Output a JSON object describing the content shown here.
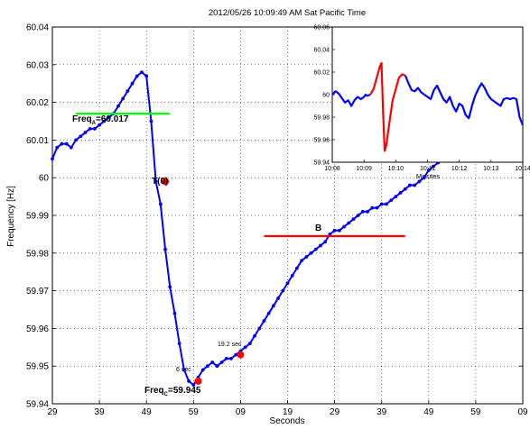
{
  "chart_data": [
    {
      "type": "line",
      "title": "2012/05/26 10:09:49 AM Sat Pacific Time",
      "xlabel": "Seconds",
      "ylabel": "Frequency [Hz]",
      "x_tick_labels": [
        "29",
        "39",
        "49",
        "59",
        "09",
        "19",
        "29",
        "39",
        "49",
        "59",
        "09"
      ],
      "xlim_seconds": [
        0,
        100
      ],
      "ylim": [
        59.94,
        60.04
      ],
      "y_ticks": [
        59.94,
        59.95,
        59.96,
        59.97,
        59.98,
        59.99,
        60,
        60.01,
        60.02,
        60.03,
        60.04
      ],
      "y_tick_labels": [
        "59.94",
        "59.95",
        "59.96",
        "59.97",
        "59.98",
        "59.99",
        "60",
        "60.01",
        "60.02",
        "60.03",
        "60.04"
      ],
      "grid": true,
      "series": [
        {
          "color": "#0000ff",
          "x": [
            0,
            1,
            2,
            3,
            4,
            5,
            6,
            7,
            8,
            9,
            10,
            11,
            12,
            13,
            14,
            15,
            16,
            17,
            18,
            19,
            20,
            21,
            22,
            23,
            24,
            25,
            26,
            27,
            28,
            29,
            30,
            31,
            32,
            33,
            34,
            35,
            36,
            37,
            38,
            39,
            40,
            41,
            42,
            43,
            44,
            45,
            46,
            47,
            48,
            49,
            50,
            51,
            52,
            53,
            54,
            55,
            56,
            57,
            58,
            59,
            60,
            61,
            62,
            63,
            64,
            65,
            66,
            67,
            68,
            69,
            70,
            71,
            72,
            73,
            74,
            75,
            76,
            77,
            78,
            79,
            80,
            81,
            82,
            83,
            84,
            85
          ],
          "y": [
            60.005,
            60.008,
            60.009,
            60.009,
            60.008,
            60.01,
            60.011,
            60.012,
            60.013,
            60.013,
            60.014,
            60.015,
            60.016,
            60.017,
            60.019,
            60.021,
            60.023,
            60.025,
            60.027,
            60.028,
            60.027,
            60.015,
            59.999,
            59.993,
            59.981,
            59.971,
            59.964,
            59.956,
            59.949,
            59.946,
            59.945,
            59.947,
            59.949,
            59.95,
            59.951,
            59.95,
            59.951,
            59.952,
            59.952,
            59.953,
            59.954,
            59.955,
            59.956,
            59.958,
            59.96,
            59.962,
            59.964,
            59.966,
            59.968,
            59.97,
            59.972,
            59.974,
            59.976,
            59.978,
            59.979,
            59.98,
            59.981,
            59.982,
            59.983,
            59.985,
            59.986,
            59.986,
            59.987,
            59.988,
            59.989,
            59.99,
            59.991,
            59.991,
            59.992,
            59.992,
            59.993,
            59.993,
            59.994,
            59.995,
            59.996,
            59.997,
            59.998,
            59.998,
            59.999,
            60,
            60.002,
            60.003,
            60.004,
            60.005,
            60.006,
            60.008
          ]
        },
        {
          "name": "Freq_A=60.017",
          "color": "#00ff00",
          "x": [
            5,
            25
          ],
          "y": [
            60.017,
            60.017
          ]
        },
        {
          "name": "B",
          "color": "#ff0000",
          "x": [
            45,
            75
          ],
          "y": [
            59.9845,
            59.9845
          ]
        }
      ],
      "markers": [
        {
          "label": "T(0)",
          "x": 24,
          "y": 59.999,
          "color": "#ff0000"
        },
        {
          "label": "6 sec",
          "x": 31,
          "y": 59.946,
          "color": "#ff0000"
        },
        {
          "label": "19.2 sec",
          "x": 40,
          "y": 59.953,
          "color": "#ff0000"
        }
      ],
      "annotations": [
        {
          "text_main": "Freq",
          "text_sub": "A",
          "text_tail": "=60.017"
        },
        {
          "text_main": "Freq",
          "text_sub": "C",
          "text_tail": "=59.945"
        },
        {
          "text_main": "B"
        },
        {
          "text_main": "T(0)"
        },
        {
          "text_main": "6 sec"
        },
        {
          "text_main": "19.2 sec"
        }
      ]
    },
    {
      "type": "line",
      "title": "",
      "xlabel": "Minutes",
      "ylabel": "",
      "x_tick_labels": [
        "10:08",
        "10:09",
        "10:10",
        "10:11",
        "10:12",
        "10:13",
        "10:14"
      ],
      "xlim_minutes": [
        0,
        6
      ],
      "ylim": [
        59.94,
        60.06
      ],
      "y_ticks": [
        59.94,
        59.96,
        59.98,
        60,
        60.02,
        60.04,
        60.06
      ],
      "y_tick_labels": [
        "59.94",
        "59.96",
        "59.98",
        "60",
        "60.02",
        "60.04",
        "60.06"
      ],
      "grid": false,
      "series": [
        {
          "color": "#0000ff",
          "x": [
            0,
            0.1,
            0.2,
            0.3,
            0.4,
            0.5,
            0.6,
            0.7,
            0.8,
            0.9,
            1.0,
            1.05,
            1.1,
            1.2
          ],
          "y": [
            60.0,
            60.003,
            60.001,
            59.997,
            59.993,
            59.995,
            59.99,
            59.995,
            59.998,
            59.996,
            59.998,
            60.0,
            59.999,
            60.0
          ]
        },
        {
          "color": "#ff0000",
          "x": [
            1.2,
            1.3,
            1.4,
            1.5,
            1.55,
            1.6,
            1.65,
            1.7,
            1.8,
            1.9,
            2.0,
            2.1,
            2.2,
            2.3
          ],
          "y": [
            60.0,
            60.005,
            60.015,
            60.025,
            60.028,
            59.985,
            59.95,
            59.955,
            59.975,
            59.995,
            60.005,
            60.015,
            60.018,
            60.017
          ]
        },
        {
          "color": "#0000ff",
          "x": [
            2.3,
            2.4,
            2.5,
            2.6,
            2.7,
            2.8,
            2.9,
            3.0,
            3.1,
            3.2,
            3.3,
            3.4,
            3.5,
            3.6,
            3.7,
            3.8,
            3.9,
            4.0,
            4.1,
            4.2,
            4.3,
            4.4,
            4.5,
            4.6,
            4.7,
            4.8,
            4.9,
            5.0,
            5.1,
            5.2,
            5.3,
            5.4,
            5.5,
            5.6,
            5.7,
            5.8,
            5.9,
            6.0
          ],
          "y": [
            60.017,
            60.01,
            60.004,
            60.003,
            60.006,
            60.002,
            60.0,
            59.998,
            59.996,
            60.004,
            60.008,
            60.002,
            59.996,
            59.993,
            59.998,
            59.99,
            59.985,
            59.992,
            59.99,
            59.982,
            59.979,
            59.99,
            59.999,
            60.005,
            60.01,
            60.006,
            60.0,
            59.996,
            59.994,
            59.992,
            59.99,
            59.996,
            59.997,
            59.996,
            59.997,
            59.996,
            59.98,
            59.973
          ]
        }
      ]
    }
  ]
}
